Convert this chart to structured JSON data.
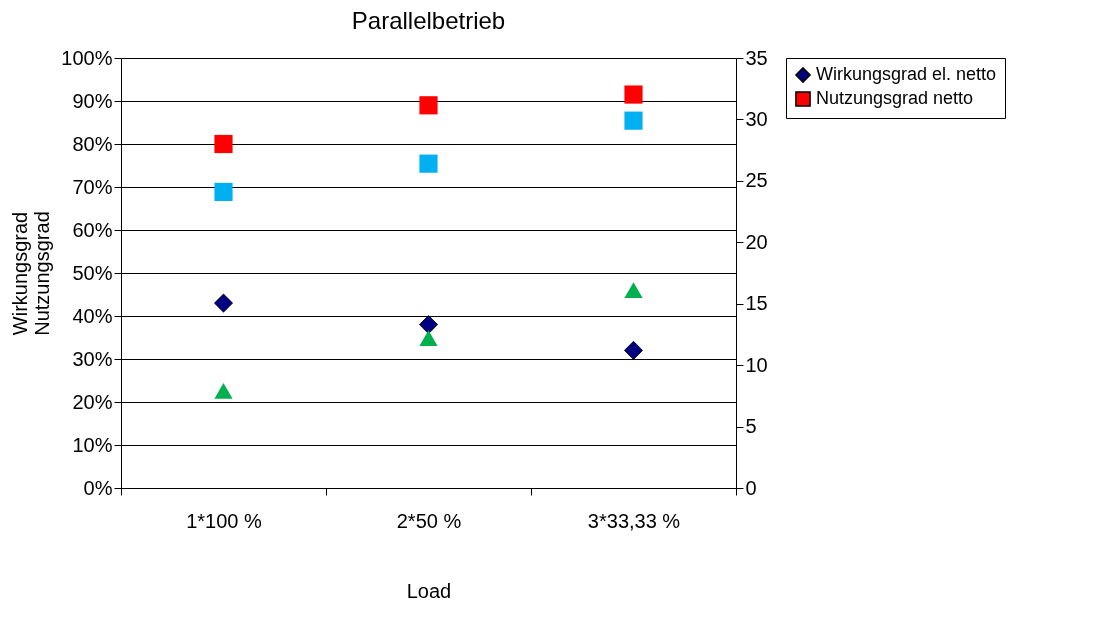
{
  "chart_data": {
    "type": "scatter",
    "title": "Parallelbetrieb",
    "xlabel": "Load",
    "ylabel": "Wirkungsgrad\nNutzungsgrad",
    "categories": [
      "1*100 %",
      "2*50 %",
      "3*33,33 %"
    ],
    "series": [
      {
        "name": "Wirkungsgrad el. netto",
        "color": "#000080",
        "marker": "diamond",
        "values": [
          43,
          38,
          32
        ]
      },
      {
        "name": "Nutzungsgrad netto",
        "color": "#ff0000",
        "marker": "square",
        "values": [
          80,
          89,
          91.5
        ]
      },
      {
        "color": "#00b0f0",
        "marker": "square",
        "axis": "y2",
        "values": [
          24.1,
          26.4,
          29.9
        ]
      },
      {
        "color": "#00b050",
        "marker": "triangle",
        "axis": "y2",
        "values": [
          7.9,
          12.2,
          16.1
        ]
      }
    ],
    "ylim": [
      0,
      100
    ],
    "yticks": [
      {
        "value": 0,
        "label": "0%"
      },
      {
        "value": 10,
        "label": "10%"
      },
      {
        "value": 20,
        "label": "20%"
      },
      {
        "value": 30,
        "label": "30%"
      },
      {
        "value": 40,
        "label": "40%"
      },
      {
        "value": 50,
        "label": "50%"
      },
      {
        "value": 60,
        "label": "60%"
      },
      {
        "value": 70,
        "label": "70%"
      },
      {
        "value": 80,
        "label": "80%"
      },
      {
        "value": 90,
        "label": "90%"
      },
      {
        "value": 100,
        "label": "100%"
      }
    ],
    "y2lim": [
      0,
      35
    ],
    "y2ticks": [
      0,
      5,
      10,
      15,
      20,
      25,
      30,
      35
    ],
    "grid": "y",
    "legend": "right"
  }
}
